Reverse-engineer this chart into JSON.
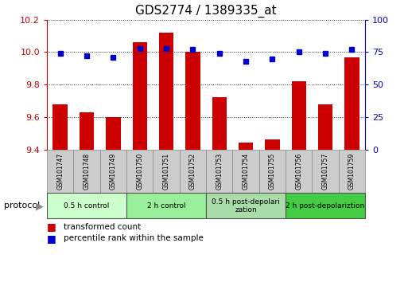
{
  "title": "GDS2774 / 1389335_at",
  "samples": [
    "GSM101747",
    "GSM101748",
    "GSM101749",
    "GSM101750",
    "GSM101751",
    "GSM101752",
    "GSM101753",
    "GSM101754",
    "GSM101755",
    "GSM101756",
    "GSM101757",
    "GSM101759"
  ],
  "red_values": [
    9.68,
    9.63,
    9.6,
    10.06,
    10.12,
    10.0,
    9.72,
    9.44,
    9.46,
    9.82,
    9.68,
    9.97
  ],
  "blue_values": [
    74,
    72,
    71,
    78,
    78,
    77,
    74,
    68,
    70,
    75,
    74,
    77
  ],
  "ylim_left": [
    9.4,
    10.2
  ],
  "ylim_right": [
    0,
    100
  ],
  "yticks_left": [
    9.4,
    9.6,
    9.8,
    10.0,
    10.2
  ],
  "yticks_right": [
    0,
    25,
    50,
    75,
    100
  ],
  "groups": [
    {
      "label": "0.5 h control",
      "start": 0,
      "end": 3,
      "color": "#ccffcc"
    },
    {
      "label": "2 h control",
      "start": 3,
      "end": 6,
      "color": "#99ee99"
    },
    {
      "label": "0.5 h post-depolarization",
      "start": 6,
      "end": 9,
      "color": "#aaddaa"
    },
    {
      "label": "2 h post-depolariztion",
      "start": 9,
      "end": 12,
      "color": "#44cc44"
    }
  ],
  "bar_color": "#cc0000",
  "blue_color": "#0000cc",
  "bar_bottom": 9.4,
  "bar_width": 0.55,
  "protocol_label": "protocol",
  "legend_items": [
    {
      "color": "#cc0000",
      "label": "transformed count"
    },
    {
      "color": "#0000cc",
      "label": "percentile rank within the sample"
    }
  ],
  "background_color": "#ffffff",
  "plot_bg_color": "#ffffff",
  "tick_label_color_left": "#cc0000",
  "tick_label_color_right": "#0000cc",
  "title_fontsize": 11,
  "sample_box_color": "#cccccc",
  "sample_box_edge": "#888888"
}
